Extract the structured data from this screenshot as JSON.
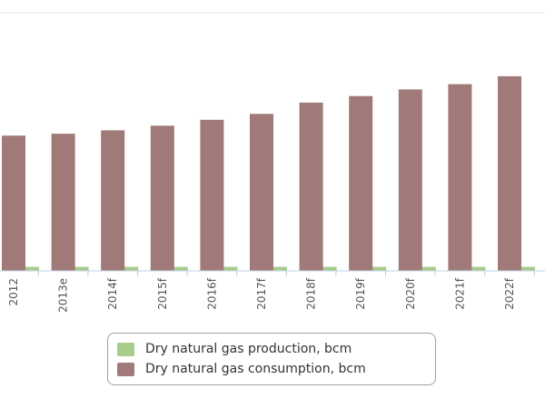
{
  "chart_data": {
    "type": "bar",
    "categories": [
      "2012",
      "2013e",
      "2014f",
      "2015f",
      "2016f",
      "2017f",
      "2018f",
      "2019f",
      "2020f",
      "2021f",
      "2022f"
    ],
    "series": [
      {
        "name": "Dry natural gas production, bcm",
        "color": "#a8cc8c",
        "values": [
          0.6,
          0.6,
          0.6,
          0.6,
          0.6,
          0.6,
          0.6,
          0.6,
          0.6,
          0.6,
          0.6
        ]
      },
      {
        "name": "Dry natural gas consumption, bcm",
        "color": "#a07a78",
        "values": [
          20.5,
          20.8,
          21.3,
          22.0,
          22.9,
          23.8,
          25.5,
          26.5,
          27.5,
          28.3,
          29.5
        ]
      }
    ],
    "ylim": [
      0,
      35
    ],
    "grid": false,
    "legend": "bottom"
  },
  "legend": {
    "items": [
      {
        "label": "Dry natural gas production, bcm",
        "color": "#a8cc8c"
      },
      {
        "label": "Dry natural gas consumption, bcm",
        "color": "#a07a78"
      }
    ]
  }
}
